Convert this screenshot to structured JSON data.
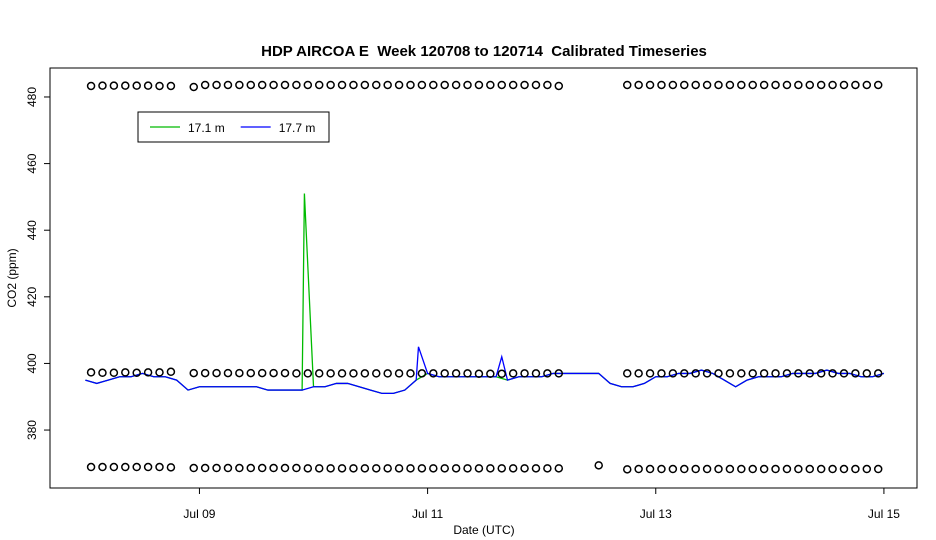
{
  "chart_data": {
    "type": "line",
    "title": "HDP AIRCOA E  Week 120708 to 120714  Calibrated Timeseries",
    "x_label": "Date (UTC)",
    "y_label": "CO2 (ppm)",
    "xlim": [
      7.69,
      15.29
    ],
    "xticks": [
      {
        "value": 9,
        "label": "Jul 09"
      },
      {
        "value": 11,
        "label": "Jul 11"
      },
      {
        "value": 13,
        "label": "Jul 13"
      },
      {
        "value": 15,
        "label": "Jul 15"
      }
    ],
    "ylim": [
      362.6,
      488.7
    ],
    "yticks": [
      380,
      400,
      420,
      440,
      460,
      480
    ],
    "legend": "topleft",
    "series": [
      {
        "name": "17.1 m",
        "color": "#00bb00",
        "x": [
          8.0,
          8.1,
          8.2,
          8.3,
          8.4,
          8.5,
          8.6,
          8.7,
          8.8,
          8.9,
          9.0,
          9.1,
          9.2,
          9.3,
          9.4,
          9.5,
          9.6,
          9.7,
          9.8,
          9.9,
          9.92,
          10.0,
          10.1,
          10.2,
          10.3,
          10.4,
          10.5,
          10.6,
          10.7,
          10.8,
          10.9,
          11.0,
          11.1,
          11.2,
          11.3,
          11.4,
          11.5,
          11.6,
          11.7,
          11.8,
          11.9,
          12.0,
          12.1,
          12.2,
          12.3,
          12.4,
          12.5,
          12.6,
          12.7,
          12.8,
          12.9,
          13.0,
          13.1,
          13.2,
          13.3,
          13.4,
          13.5,
          13.6,
          13.7,
          13.8,
          13.9,
          14.0,
          14.1,
          14.2,
          14.3,
          14.4,
          14.5,
          14.6,
          14.7,
          14.8,
          14.9,
          15.0
        ],
        "values": [
          395,
          394,
          395,
          396,
          396,
          397,
          396,
          396,
          395,
          392,
          393,
          393,
          393,
          393,
          393,
          393,
          392,
          392,
          392,
          392,
          451,
          393,
          393,
          394,
          394,
          393,
          392,
          391,
          391,
          392,
          395,
          397,
          396,
          396,
          396,
          396,
          396,
          396,
          395,
          396,
          396,
          396,
          397,
          397,
          397,
          397,
          397,
          394,
          393,
          393,
          394,
          396,
          396,
          397,
          397,
          398,
          397,
          395,
          393,
          395,
          396,
          396,
          396,
          397,
          397,
          397,
          398,
          397,
          397,
          396,
          396,
          397
        ]
      },
      {
        "name": "17.7 m",
        "color": "#0000ff",
        "x": [
          8.0,
          8.1,
          8.2,
          8.3,
          8.4,
          8.5,
          8.6,
          8.7,
          8.8,
          8.9,
          9.0,
          9.1,
          9.2,
          9.3,
          9.4,
          9.5,
          9.6,
          9.7,
          9.8,
          9.9,
          10.0,
          10.1,
          10.2,
          10.3,
          10.4,
          10.5,
          10.6,
          10.7,
          10.8,
          10.9,
          10.92,
          11.0,
          11.1,
          11.2,
          11.3,
          11.4,
          11.5,
          11.6,
          11.65,
          11.7,
          11.8,
          11.9,
          12.0,
          12.1,
          12.2,
          12.3,
          12.4,
          12.5,
          12.6,
          12.7,
          12.8,
          12.9,
          13.0,
          13.1,
          13.2,
          13.3,
          13.4,
          13.5,
          13.6,
          13.7,
          13.8,
          13.9,
          14.0,
          14.1,
          14.2,
          14.3,
          14.4,
          14.5,
          14.6,
          14.7,
          14.8,
          14.9,
          15.0
        ],
        "values": [
          395,
          394,
          395,
          396,
          396,
          397,
          396,
          396,
          395,
          392,
          393,
          393,
          393,
          393,
          393,
          393,
          392,
          392,
          392,
          392,
          393,
          393,
          394,
          394,
          393,
          392,
          391,
          391,
          392,
          395,
          405,
          397,
          396,
          396,
          396,
          396,
          396,
          396,
          402,
          395,
          396,
          396,
          396,
          397,
          397,
          397,
          397,
          397,
          394,
          393,
          393,
          394,
          396,
          396,
          397,
          397,
          398,
          397,
          395,
          393,
          395,
          396,
          396,
          396,
          397,
          397,
          397,
          398,
          397,
          397,
          396,
          396,
          397
        ]
      }
    ],
    "calibration": [
      {
        "x": [
          8.05,
          8.15,
          8.25,
          8.35,
          8.45,
          8.55,
          8.65,
          8.75,
          8.95,
          9.05,
          9.15,
          9.25,
          9.35,
          9.45,
          9.55,
          9.65,
          9.75,
          9.85,
          9.95,
          10.05,
          10.15,
          10.25,
          10.35,
          10.45,
          10.55,
          10.65,
          10.75,
          10.85,
          10.95,
          11.05,
          11.15,
          11.25,
          11.35,
          11.45,
          11.55,
          11.65,
          11.75,
          11.85,
          11.95,
          12.05,
          12.15,
          12.75,
          12.85,
          12.95,
          13.05,
          13.15,
          13.25,
          13.35,
          13.45,
          13.55,
          13.65,
          13.75,
          13.85,
          13.95,
          14.05,
          14.15,
          14.25,
          14.35,
          14.45,
          14.55,
          14.65,
          14.75,
          14.85,
          14.95
        ],
        "values": [
          483.3,
          483.4,
          483.4,
          483.4,
          483.4,
          483.4,
          483.3,
          483.3,
          483.0,
          483.6,
          483.6,
          483.6,
          483.6,
          483.6,
          483.6,
          483.6,
          483.6,
          483.6,
          483.6,
          483.6,
          483.6,
          483.6,
          483.6,
          483.6,
          483.6,
          483.6,
          483.6,
          483.6,
          483.6,
          483.6,
          483.6,
          483.6,
          483.6,
          483.6,
          483.6,
          483.6,
          483.6,
          483.6,
          483.6,
          483.6,
          483.3,
          483.6,
          483.6,
          483.6,
          483.6,
          483.6,
          483.6,
          483.6,
          483.6,
          483.6,
          483.6,
          483.6,
          483.6,
          483.6,
          483.6,
          483.6,
          483.6,
          483.6,
          483.6,
          483.6,
          483.6,
          483.6,
          483.6,
          483.6
        ]
      },
      {
        "x": [
          8.05,
          8.15,
          8.25,
          8.35,
          8.45,
          8.55,
          8.65,
          8.75,
          8.95,
          9.05,
          9.15,
          9.25,
          9.35,
          9.45,
          9.55,
          9.65,
          9.75,
          9.85,
          9.95,
          10.05,
          10.15,
          10.25,
          10.35,
          10.45,
          10.55,
          10.65,
          10.75,
          10.85,
          10.95,
          11.05,
          11.15,
          11.25,
          11.35,
          11.45,
          11.55,
          11.65,
          11.75,
          11.85,
          11.95,
          12.05,
          12.15,
          12.75,
          12.85,
          12.95,
          13.05,
          13.15,
          13.25,
          13.35,
          13.45,
          13.55,
          13.65,
          13.75,
          13.85,
          13.95,
          14.05,
          14.15,
          14.25,
          14.35,
          14.45,
          14.55,
          14.65,
          14.75,
          14.85,
          14.95
        ],
        "values": [
          397.3,
          397.2,
          397.2,
          397.3,
          397.2,
          397.3,
          397.3,
          397.5,
          397.1,
          397.1,
          397.1,
          397.1,
          397.1,
          397.1,
          397.1,
          397.1,
          397.1,
          397.0,
          397.0,
          397.0,
          397.0,
          397.0,
          397.0,
          397.0,
          397.0,
          397.0,
          397.0,
          397.0,
          397.0,
          397.0,
          397.0,
          397.0,
          397.0,
          396.9,
          396.9,
          396.9,
          397.0,
          397.0,
          397.0,
          397.0,
          397.0,
          397.0,
          397.0,
          397.0,
          397.0,
          397.0,
          397.0,
          397.0,
          397.0,
          397.0,
          397.0,
          397.0,
          397.0,
          397.0,
          397.0,
          397.0,
          397.0,
          397.0,
          397.0,
          397.0,
          397.0,
          397.0,
          397.0,
          397.0
        ]
      },
      {
        "x": [
          8.05,
          8.15,
          8.25,
          8.35,
          8.45,
          8.55,
          8.65,
          8.75,
          8.95,
          9.05,
          9.15,
          9.25,
          9.35,
          9.45,
          9.55,
          9.65,
          9.75,
          9.85,
          9.95,
          10.05,
          10.15,
          10.25,
          10.35,
          10.45,
          10.55,
          10.65,
          10.75,
          10.85,
          10.95,
          11.05,
          11.15,
          11.25,
          11.35,
          11.45,
          11.55,
          11.65,
          11.75,
          11.85,
          11.95,
          12.05,
          12.15,
          12.5,
          12.75,
          12.85,
          12.95,
          13.05,
          13.15,
          13.25,
          13.35,
          13.45,
          13.55,
          13.65,
          13.75,
          13.85,
          13.95,
          14.05,
          14.15,
          14.25,
          14.35,
          14.45,
          14.55,
          14.65,
          14.75,
          14.85,
          14.95
        ],
        "values": [
          368.9,
          368.9,
          368.9,
          368.9,
          368.9,
          368.9,
          368.9,
          368.8,
          368.6,
          368.6,
          368.6,
          368.6,
          368.6,
          368.6,
          368.6,
          368.6,
          368.6,
          368.6,
          368.5,
          368.5,
          368.5,
          368.5,
          368.5,
          368.5,
          368.5,
          368.5,
          368.5,
          368.5,
          368.5,
          368.5,
          368.5,
          368.5,
          368.5,
          368.5,
          368.5,
          368.5,
          368.5,
          368.5,
          368.5,
          368.5,
          368.5,
          369.4,
          368.2,
          368.3,
          368.3,
          368.3,
          368.3,
          368.3,
          368.3,
          368.3,
          368.3,
          368.3,
          368.3,
          368.3,
          368.3,
          368.3,
          368.3,
          368.3,
          368.3,
          368.3,
          368.3,
          368.3,
          368.3,
          368.3,
          368.3
        ]
      }
    ]
  }
}
